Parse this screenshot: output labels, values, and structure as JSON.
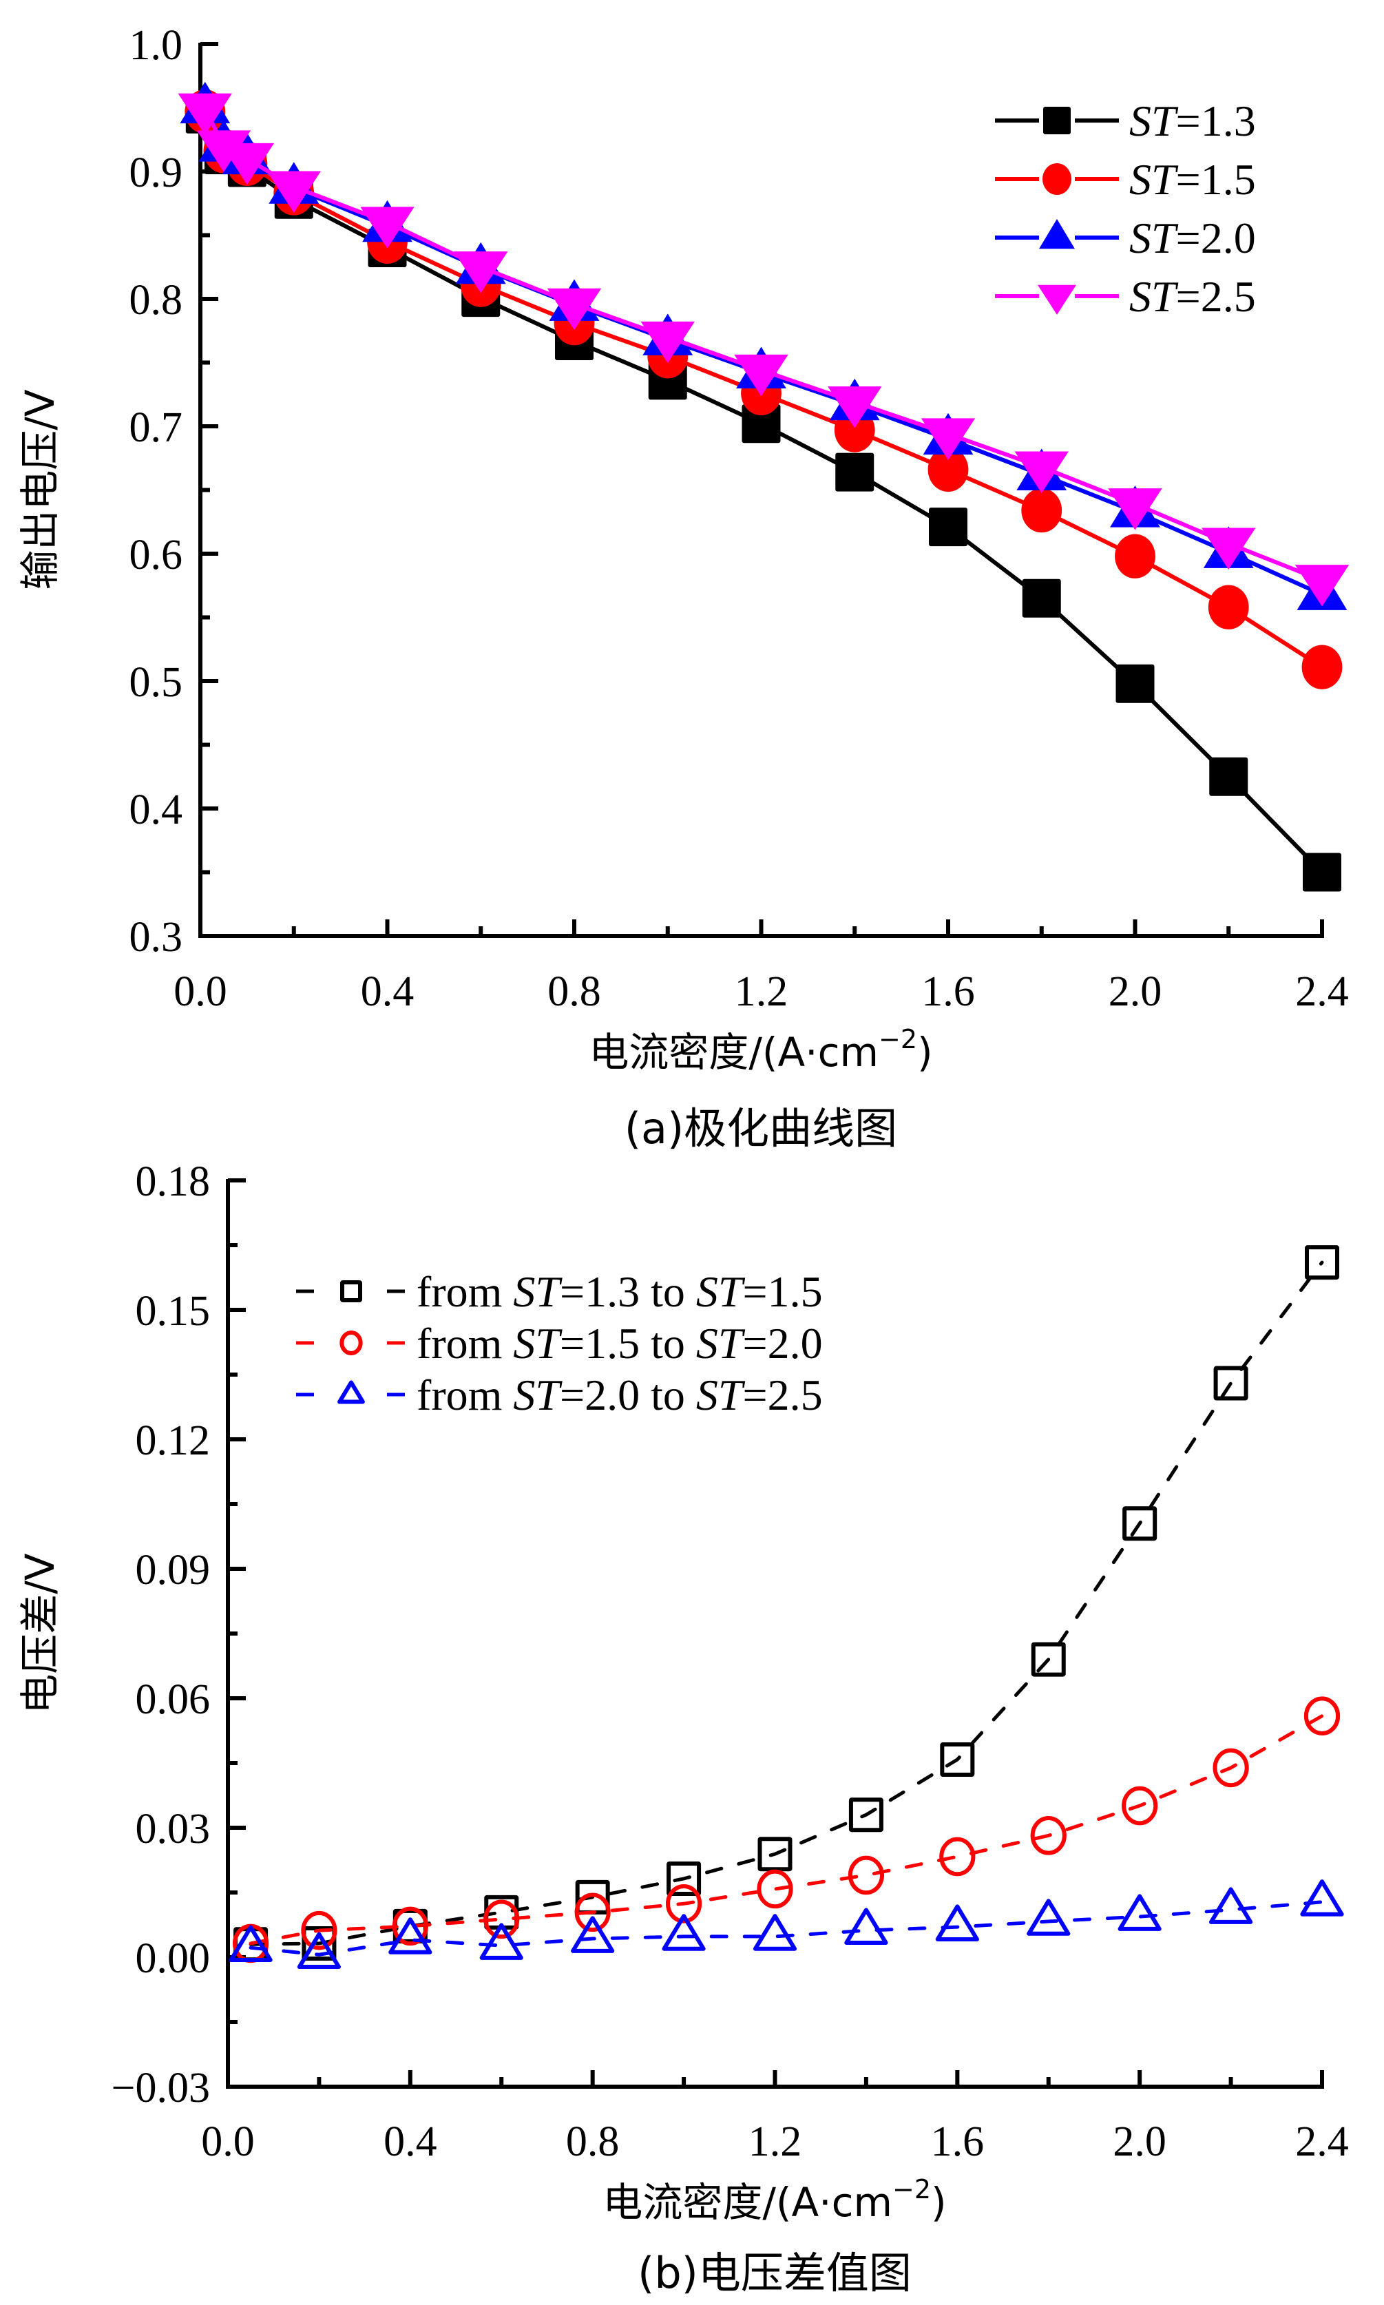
{
  "chart_data": [
    {
      "id": "a",
      "type": "line",
      "caption": "(a)极化曲线图",
      "xlabel": "电流密度/(A·cm",
      "xlabel_sup": "−2",
      "xlabel_tail": ")",
      "ylabel": "输出电压/V",
      "xlim": [
        0,
        2.4
      ],
      "ylim": [
        0.3,
        1.0
      ],
      "xticks": [
        0.0,
        0.4,
        0.8,
        1.2,
        1.6,
        2.0,
        2.4
      ],
      "xtick_labels": [
        "0.0",
        "0.4",
        "0.8",
        "1.2",
        "1.6",
        "2.0",
        "2.4"
      ],
      "xminor": 0.2,
      "yticks": [
        0.3,
        0.4,
        0.5,
        0.6,
        0.7,
        0.8,
        0.9,
        1.0
      ],
      "ytick_labels": [
        "0.3",
        "0.4",
        "0.5",
        "0.6",
        "0.7",
        "0.8",
        "0.9",
        "1.0"
      ],
      "yminor": 0.05,
      "grid": false,
      "legend_position": "top-right",
      "x": [
        0.01,
        0.05,
        0.1,
        0.2,
        0.4,
        0.6,
        0.8,
        1.0,
        1.2,
        1.4,
        1.6,
        1.8,
        2.0,
        2.2,
        2.4
      ],
      "series": [
        {
          "name": "ST=1.3",
          "label_italic": "ST",
          "label_rest": "=1.3",
          "color": "#000000",
          "marker": "square",
          "filled": true,
          "dashed": false,
          "values": [
            0.945,
            0.913,
            0.903,
            0.878,
            0.84,
            0.801,
            0.767,
            0.736,
            0.702,
            0.664,
            0.621,
            0.565,
            0.498,
            0.425,
            0.35
          ]
        },
        {
          "name": "ST=1.5",
          "label_italic": "ST",
          "label_rest": "=1.5",
          "color": "#ff0000",
          "marker": "circle",
          "filled": true,
          "dashed": false,
          "values": [
            0.947,
            0.916,
            0.906,
            0.883,
            0.845,
            0.811,
            0.781,
            0.755,
            0.726,
            0.697,
            0.666,
            0.634,
            0.598,
            0.558,
            0.511
          ]
        },
        {
          "name": "ST=2.0",
          "label_italic": "ST",
          "label_rest": "=2.0",
          "color": "#0000ff",
          "marker": "triangle-up",
          "filled": true,
          "dashed": false,
          "values": [
            0.95,
            0.92,
            0.91,
            0.887,
            0.857,
            0.824,
            0.795,
            0.768,
            0.742,
            0.717,
            0.69,
            0.662,
            0.633,
            0.601,
            0.568
          ]
        },
        {
          "name": "ST=2.5",
          "label_italic": "ST",
          "label_rest": "=2.5",
          "color": "#ff00ff",
          "marker": "triangle-down",
          "filled": true,
          "dashed": false,
          "values": [
            0.949,
            0.92,
            0.91,
            0.888,
            0.86,
            0.825,
            0.796,
            0.77,
            0.744,
            0.719,
            0.694,
            0.668,
            0.639,
            0.608,
            0.579
          ]
        }
      ]
    },
    {
      "id": "b",
      "type": "line",
      "caption": "(b)电压差值图",
      "xlabel": "电流密度/(A·cm",
      "xlabel_sup": "−2",
      "xlabel_tail": ")",
      "ylabel": "电压差/V",
      "xlim": [
        0,
        2.4
      ],
      "ylim": [
        -0.03,
        0.18
      ],
      "xticks": [
        0.0,
        0.4,
        0.8,
        1.2,
        1.6,
        2.0,
        2.4
      ],
      "xtick_labels": [
        "0.0",
        "0.4",
        "0.8",
        "1.2",
        "1.6",
        "2.0",
        "2.4"
      ],
      "xminor": 0.2,
      "yticks": [
        -0.03,
        0.0,
        0.03,
        0.06,
        0.09,
        0.12,
        0.15,
        0.18
      ],
      "ytick_labels": [
        "−0.03",
        "0.00",
        "0.03",
        "0.06",
        "0.09",
        "0.12",
        "0.15",
        "0.18"
      ],
      "yminor": 0.015,
      "grid": false,
      "legend_position": "top-left",
      "x": [
        0.05,
        0.2,
        0.4,
        0.6,
        0.8,
        1.0,
        1.2,
        1.4,
        1.6,
        1.8,
        2.0,
        2.2,
        2.4
      ],
      "series": [
        {
          "name": "from ST=1.3 to ST=1.5",
          "label_parts": [
            "from ",
            "ST",
            "=1.3 to ",
            "ST",
            "=1.5"
          ],
          "color": "#000000",
          "marker": "square",
          "filled": false,
          "dashed": true,
          "values": [
            0.003,
            0.0032,
            0.0072,
            0.0104,
            0.0139,
            0.0182,
            0.0239,
            0.033,
            0.0458,
            0.069,
            0.1005,
            0.133,
            0.161
          ]
        },
        {
          "name": "from ST=1.5 to ST=2.0",
          "label_parts": [
            "from ",
            "ST",
            "=1.5 to ",
            "ST",
            "=2.0"
          ],
          "color": "#ff0000",
          "marker": "circle",
          "filled": false,
          "dashed": true,
          "values": [
            0.0032,
            0.0062,
            0.0072,
            0.0088,
            0.0104,
            0.0124,
            0.0158,
            0.019,
            0.0233,
            0.0282,
            0.0351,
            0.0439,
            0.0559
          ]
        },
        {
          "name": "from ST=2.0 to ST=2.5",
          "label_parts": [
            "from ",
            "ST",
            "=2.0 to ",
            "ST",
            "=2.5"
          ],
          "color": "#0000ff",
          "marker": "triangle-up",
          "filled": false,
          "dashed": true,
          "values": [
            0.0022,
            0.0006,
            0.004,
            0.0027,
            0.0043,
            0.0048,
            0.0048,
            0.0062,
            0.007,
            0.0083,
            0.0094,
            0.011,
            0.0128
          ]
        }
      ]
    }
  ]
}
